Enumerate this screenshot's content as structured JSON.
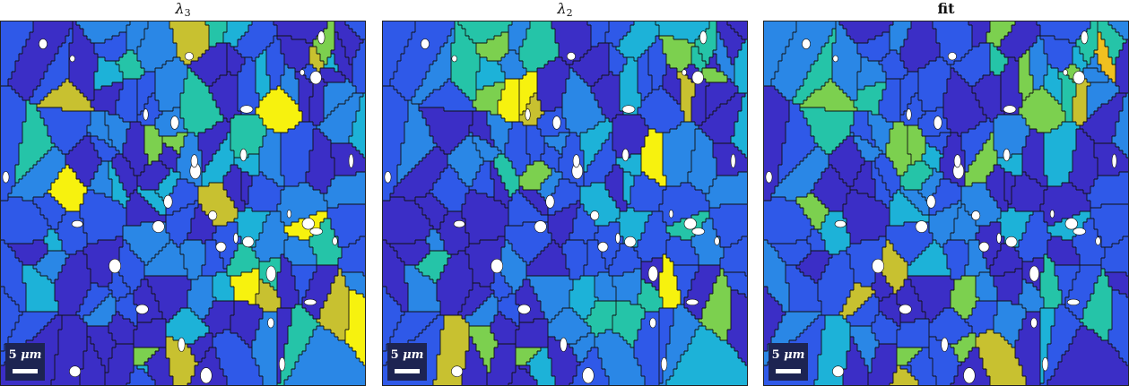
{
  "chart_data": [
    {
      "type": "heatmap",
      "title": "λ",
      "title_subscript": "3",
      "scalebar": {
        "value": "5",
        "unit": "μm"
      },
      "colormap": [
        "#3b2ec6",
        "#2f59e8",
        "#2a87e6",
        "#1db2d8",
        "#25c4a8",
        "#7cd04f",
        "#c8c130",
        "#f7f20e"
      ],
      "dominant_colors": [
        "#3b2ec6",
        "#2f59e8",
        "#2a87e6",
        "#f7f20e",
        "#1db2d8",
        "#6ccd5a"
      ]
    },
    {
      "type": "heatmap",
      "title": "λ",
      "title_subscript": "2",
      "scalebar": {
        "value": "5",
        "unit": "μm"
      },
      "colormap": [
        "#3b2ec6",
        "#2f59e8",
        "#2a87e6",
        "#1db2d8",
        "#25c4a8",
        "#7cd04f",
        "#c8c130",
        "#f7f20e"
      ],
      "dominant_colors": [
        "#3b2ec6",
        "#2f59e8",
        "#2a87e6",
        "#f7f20e",
        "#b8c23a",
        "#6ccd5a"
      ]
    },
    {
      "type": "heatmap",
      "title": "fit",
      "title_subscript": "",
      "scalebar": {
        "value": "5",
        "unit": "μm"
      },
      "colormap": [
        "#3b2ec6",
        "#2f59e8",
        "#2a87e6",
        "#1db2d8",
        "#25c4a8",
        "#7cd04f",
        "#c8c130",
        "#f0c020"
      ],
      "dominant_colors": [
        "#3b2ec6",
        "#2f59e8",
        "#2a87e6",
        "#1db2d8",
        "#e2b530",
        "#25c4a8"
      ]
    }
  ]
}
